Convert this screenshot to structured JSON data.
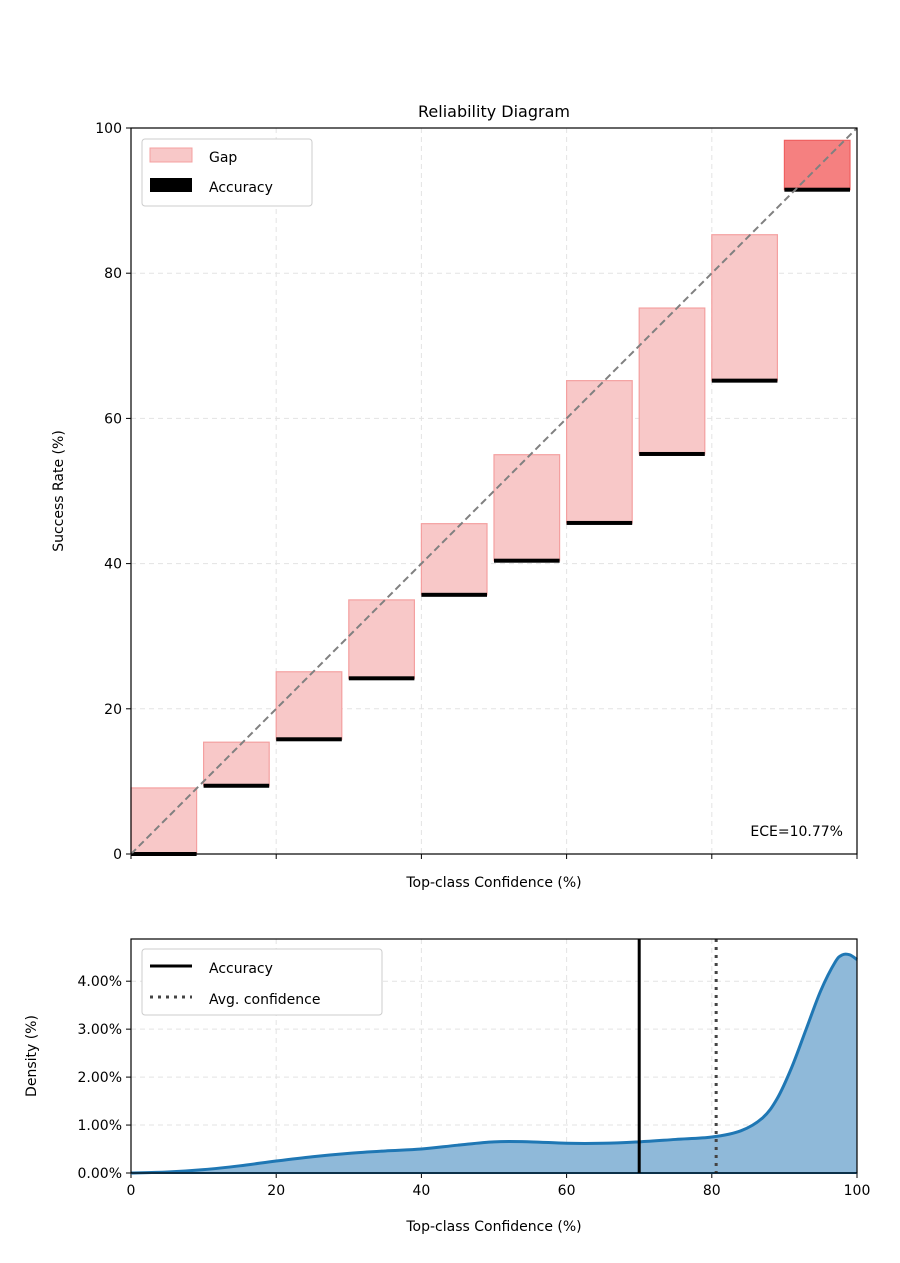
{
  "chart_data": [
    {
      "type": "bar",
      "title": "Reliability Diagram",
      "xlabel": "Top-class Confidence (%)",
      "ylabel": "Success Rate (%)",
      "xlim": [
        0,
        100
      ],
      "ylim": [
        0,
        100
      ],
      "xticks": [
        0,
        20,
        40,
        60,
        80,
        100
      ],
      "xticks_labeled": false,
      "yticks": [
        "0",
        "20",
        "40",
        "60",
        "80",
        "100"
      ],
      "grid": true,
      "legend": {
        "placement": "top-left",
        "entries": [
          "Gap",
          "Accuracy"
        ]
      },
      "annotation": "ECE=10.77%",
      "bins": [
        [
          0,
          10
        ],
        [
          10,
          20
        ],
        [
          20,
          30
        ],
        [
          30,
          40
        ],
        [
          40,
          50
        ],
        [
          50,
          60
        ],
        [
          60,
          70
        ],
        [
          70,
          80
        ],
        [
          80,
          90
        ],
        [
          90,
          100
        ]
      ],
      "series": [
        {
          "name": "Accuracy",
          "values": [
            0,
            9.4,
            15.8,
            24.2,
            35.7,
            40.4,
            45.6,
            55.1,
            65.2,
            91.5
          ]
        },
        {
          "name": "Gap",
          "top_values": [
            9.1,
            15.4,
            25.1,
            35.0,
            45.5,
            55.0,
            65.2,
            75.2,
            85.3,
            98.3
          ]
        }
      ],
      "diagonal": {
        "style": "dashed",
        "color": "#808080"
      },
      "colors": {
        "gap": "#f8c8c8",
        "gap_edge": "#f4a0a0",
        "gap_last": "#f58080",
        "accuracy": "#000000"
      }
    },
    {
      "type": "area",
      "xlabel": "Top-class Confidence (%)",
      "ylabel": "Density (%)",
      "xlim": [
        0,
        100
      ],
      "ylim": [
        0,
        4.88
      ],
      "xticks": [
        "0",
        "20",
        "40",
        "60",
        "80",
        "100"
      ],
      "yticks": [
        "0.00%",
        "1.00%",
        "2.00%",
        "3.00%",
        "4.00%"
      ],
      "grid": true,
      "legend": {
        "placement": "top-left",
        "entries": [
          "Accuracy",
          "Avg. confidence"
        ]
      },
      "x": [
        0,
        5,
        10,
        15,
        20,
        25,
        30,
        35,
        40,
        45,
        50,
        55,
        60,
        65,
        70,
        75,
        80,
        84,
        87,
        89,
        91,
        93,
        95,
        97,
        98,
        99,
        100
      ],
      "y": [
        0,
        0.02,
        0.07,
        0.15,
        0.25,
        0.34,
        0.41,
        0.46,
        0.5,
        0.58,
        0.65,
        0.65,
        0.62,
        0.62,
        0.65,
        0.7,
        0.75,
        0.88,
        1.15,
        1.55,
        2.2,
        3.0,
        3.8,
        4.4,
        4.55,
        4.55,
        4.45
      ],
      "accuracy_line": 70.0,
      "avg_confidence_line": 80.6,
      "colors": {
        "line": "#1f77b4",
        "fill": "#8fb9d9",
        "accuracy": "#000000",
        "avg_confidence": "#444444"
      }
    }
  ]
}
